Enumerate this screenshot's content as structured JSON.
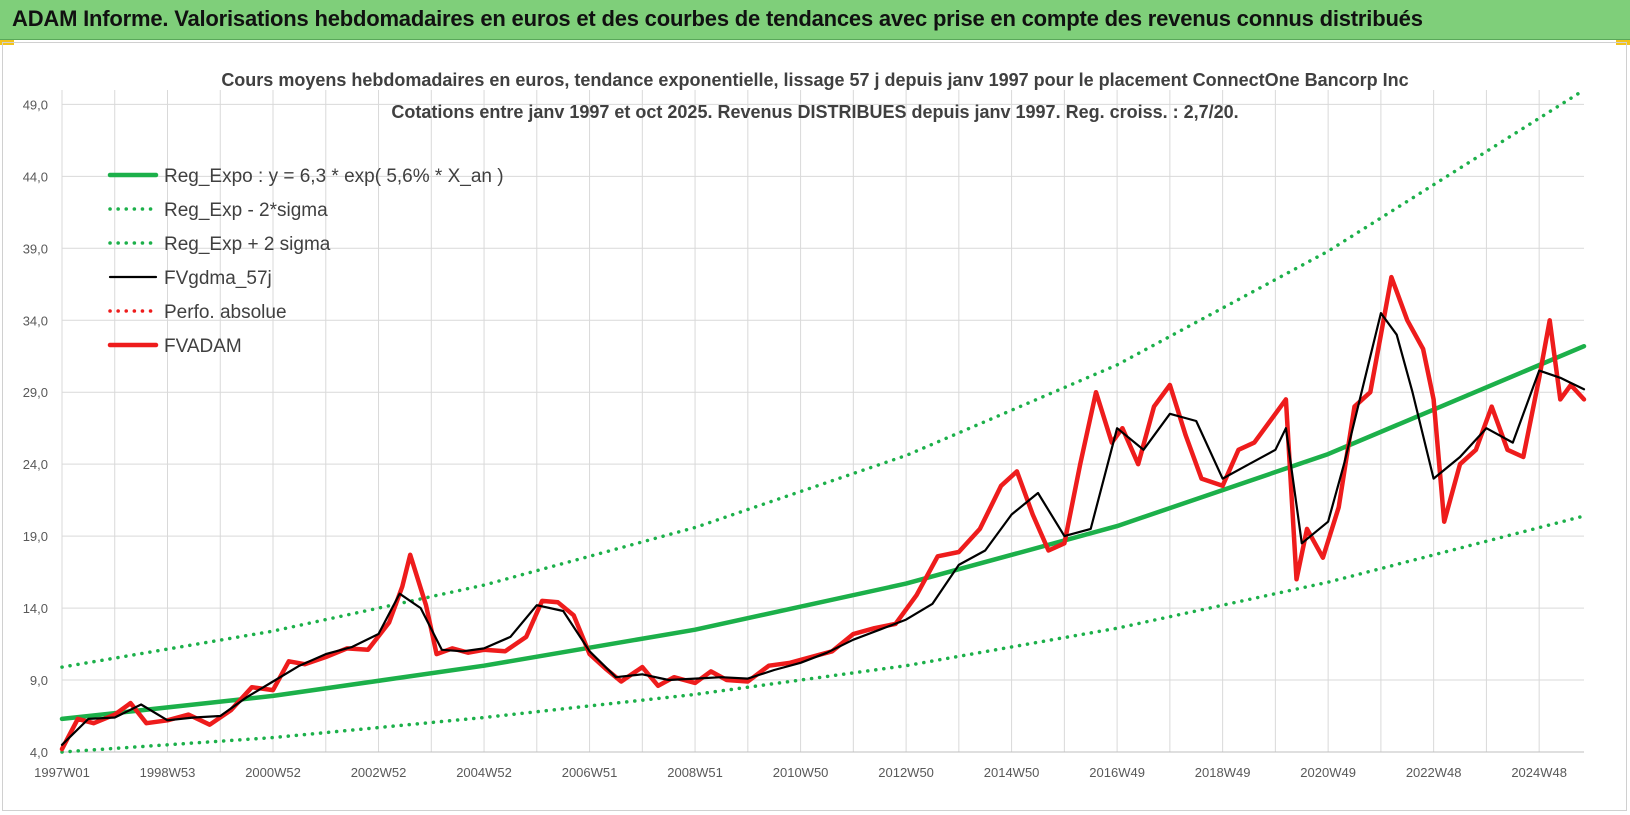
{
  "banner": {
    "title": "ADAM Informe. Valorisations hebdomadaires en euros et des courbes de tendances avec prise en compte des revenus connus distribués"
  },
  "colors": {
    "banner_bg": "#7fcf7a",
    "reg_green": "#1cb04a",
    "fv_black": "#000000",
    "adam_red": "#ee1c1c",
    "corner_yellow": "#f2c31b"
  },
  "chart_data": {
    "type": "line",
    "title": [
      "Cours moyens hebdomadaires en euros, tendance exponentielle, lissage 57 j depuis janv 1997 pour le placement ConnectOne Bancorp Inc",
      "Cotations entre janv 1997 et oct 2025. Revenus DISTRIBUES depuis janv 1997. Reg. croiss. : 2,7/20."
    ],
    "xlabel": "",
    "ylabel": "",
    "ylim": [
      4,
      50
    ],
    "yticks": [
      "4,0",
      "9,0",
      "14,0",
      "19,0",
      "24,0",
      "29,0",
      "34,0",
      "39,0",
      "44,0",
      "49,0"
    ],
    "ytick_values": [
      4,
      9,
      14,
      19,
      24,
      29,
      34,
      39,
      44,
      49
    ],
    "xlim": [
      1997.0,
      2025.85
    ],
    "xticks": [
      "1997W01",
      "1998W53",
      "2000W52",
      "2002W52",
      "2004W52",
      "2006W51",
      "2008W51",
      "2010W50",
      "2012W50",
      "2014W50",
      "2016W49",
      "2018W49",
      "2020W49",
      "2022W48",
      "2024W48"
    ],
    "xtick_values": [
      1997.0,
      1999.0,
      2001.0,
      2003.0,
      2005.0,
      2007.0,
      2009.0,
      2011.0,
      2013.0,
      2015.0,
      2017.0,
      2019.0,
      2021.0,
      2023.0,
      2025.0
    ],
    "grid": true,
    "legend_position": "top-left",
    "series": [
      {
        "name": "Reg_Expo : y = 6,3 * exp( 5,6% *  X_an )",
        "style": "solid-thick",
        "color": "#1cb04a",
        "x": [
          1997.0,
          2001.0,
          2005.0,
          2009.0,
          2013.0,
          2017.0,
          2021.0,
          2025.85
        ],
        "y": [
          6.3,
          7.9,
          10.0,
          12.5,
          15.7,
          19.7,
          24.7,
          32.2
        ]
      },
      {
        "name": "Reg_Exp - 2*sigma",
        "style": "dotted",
        "color": "#1cb04a",
        "x": [
          1997.0,
          2001.0,
          2005.0,
          2009.0,
          2013.0,
          2017.0,
          2021.0,
          2025.85
        ],
        "y": [
          4.0,
          5.0,
          6.4,
          8.0,
          10.0,
          12.6,
          15.8,
          20.4
        ]
      },
      {
        "name": "Reg_Exp + 2 sigma",
        "style": "dotted",
        "color": "#1cb04a",
        "x": [
          1997.0,
          2001.0,
          2005.0,
          2009.0,
          2013.0,
          2017.0,
          2021.0,
          2025.85
        ],
        "y": [
          9.9,
          12.4,
          15.6,
          19.6,
          24.6,
          30.9,
          38.8,
          50.0
        ]
      },
      {
        "name": "FVgdma_57j",
        "style": "solid",
        "color": "#000000",
        "x": [
          1997.0,
          1997.5,
          1998.0,
          1998.5,
          1999.0,
          1999.5,
          2000.0,
          2000.5,
          2001.0,
          2001.5,
          2002.0,
          2002.5,
          2003.0,
          2003.4,
          2003.8,
          2004.2,
          2004.6,
          2005.0,
          2005.5,
          2006.0,
          2006.5,
          2007.0,
          2007.5,
          2008.0,
          2008.5,
          2009.0,
          2009.5,
          2010.0,
          2010.5,
          2011.0,
          2011.5,
          2012.0,
          2012.5,
          2013.0,
          2013.5,
          2014.0,
          2014.5,
          2015.0,
          2015.5,
          2016.0,
          2016.5,
          2017.0,
          2017.5,
          2018.0,
          2018.5,
          2019.0,
          2019.5,
          2020.0,
          2020.2,
          2020.5,
          2021.0,
          2021.3,
          2021.6,
          2022.0,
          2022.3,
          2022.6,
          2023.0,
          2023.5,
          2024.0,
          2024.5,
          2025.0,
          2025.4,
          2025.85
        ],
        "y": [
          4.5,
          6.3,
          6.4,
          7.3,
          6.2,
          6.4,
          6.5,
          7.8,
          8.9,
          10.0,
          10.8,
          11.3,
          12.2,
          15.0,
          14.0,
          11.1,
          11.0,
          11.2,
          12.0,
          14.2,
          13.8,
          11.0,
          9.2,
          9.4,
          9.0,
          9.1,
          9.2,
          9.1,
          9.7,
          10.2,
          10.9,
          11.8,
          12.5,
          13.2,
          14.3,
          17.0,
          18.0,
          20.5,
          22.0,
          19.0,
          19.5,
          26.5,
          25.0,
          27.5,
          27.0,
          23.0,
          24.0,
          25.0,
          26.5,
          18.5,
          20.0,
          24.0,
          28.5,
          34.5,
          33.0,
          29.0,
          23.0,
          24.5,
          26.5,
          25.5,
          30.5,
          30.0,
          29.2
        ]
      },
      {
        "name": "Perfo. absolue",
        "style": "dotted",
        "color": "#ee1c1c",
        "x": [],
        "y": []
      },
      {
        "name": "FVADAM",
        "style": "solid-thick",
        "color": "#ee1c1c",
        "x": [
          1997.0,
          1997.3,
          1997.6,
          1998.0,
          1998.3,
          1998.6,
          1999.0,
          1999.4,
          1999.8,
          2000.2,
          2000.6,
          2001.0,
          2001.3,
          2001.6,
          2002.0,
          2002.4,
          2002.8,
          2003.2,
          2003.45,
          2003.6,
          2003.9,
          2004.1,
          2004.4,
          2004.7,
          2005.0,
          2005.4,
          2005.8,
          2006.1,
          2006.4,
          2006.7,
          2007.0,
          2007.3,
          2007.6,
          2008.0,
          2008.3,
          2008.6,
          2009.0,
          2009.3,
          2009.6,
          2010.0,
          2010.4,
          2010.8,
          2011.2,
          2011.6,
          2012.0,
          2012.4,
          2012.8,
          2013.2,
          2013.6,
          2014.0,
          2014.4,
          2014.8,
          2015.1,
          2015.4,
          2015.7,
          2016.0,
          2016.3,
          2016.6,
          2016.9,
          2017.1,
          2017.4,
          2017.7,
          2018.0,
          2018.3,
          2018.6,
          2019.0,
          2019.3,
          2019.6,
          2020.0,
          2020.2,
          2020.4,
          2020.6,
          2020.9,
          2021.2,
          2021.5,
          2021.8,
          2022.0,
          2022.2,
          2022.5,
          2022.8,
          2023.0,
          2023.2,
          2023.5,
          2023.8,
          2024.1,
          2024.4,
          2024.7,
          2025.0,
          2025.2,
          2025.4,
          2025.6,
          2025.85
        ],
        "y": [
          4.2,
          6.3,
          6.0,
          6.6,
          7.4,
          6.0,
          6.2,
          6.6,
          5.9,
          6.9,
          8.5,
          8.3,
          10.3,
          10.1,
          10.6,
          11.2,
          11.1,
          13.0,
          15.5,
          17.7,
          14.2,
          10.8,
          11.2,
          10.9,
          11.1,
          11.0,
          12.0,
          14.5,
          14.4,
          13.5,
          10.8,
          9.8,
          8.9,
          9.9,
          8.6,
          9.2,
          8.8,
          9.6,
          9.0,
          8.9,
          10.0,
          10.2,
          10.6,
          11.0,
          12.2,
          12.6,
          12.9,
          14.9,
          17.6,
          17.9,
          19.5,
          22.5,
          23.5,
          20.5,
          18.0,
          18.5,
          24.0,
          29.0,
          25.5,
          26.5,
          24.0,
          28.0,
          29.5,
          26.0,
          23.0,
          22.5,
          25.0,
          25.5,
          27.5,
          28.5,
          16.0,
          19.5,
          17.5,
          21.0,
          28.0,
          29.0,
          33.0,
          37.0,
          34.0,
          32.0,
          28.5,
          20.0,
          24.0,
          25.0,
          28.0,
          25.0,
          24.5,
          30.0,
          34.0,
          28.5,
          29.5,
          28.5
        ]
      }
    ]
  }
}
